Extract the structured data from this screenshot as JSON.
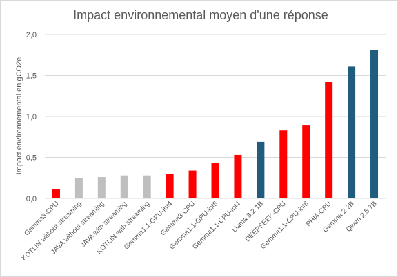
{
  "chart_data": {
    "type": "bar",
    "title": "Impact environnemental moyen d'une réponse",
    "xlabel": "",
    "ylabel": "Impact environnemental en gCO2e",
    "ylim": [
      0,
      2.0
    ],
    "yticks": [
      "0,0",
      "0,5",
      "1,0",
      "1,5",
      "2,0"
    ],
    "ytick_values": [
      0,
      0.5,
      1.0,
      1.5,
      2.0
    ],
    "grid": true,
    "legend": "none",
    "categories": [
      "Gemma3-CPU",
      "KOTLIN without streaming",
      "JAVA without streaming",
      "JAVA with streaming",
      "KOTLIN with streaming",
      "Gemma1.1-GPU-int4",
      "Gemma3-CPU",
      "Gemma1.1-GPU-int8",
      "Gemma1.1-CPU-int4",
      "Llama 3.2 1B",
      "DEEPSEEK-CPU",
      "Gemma1.1-CPU-int8",
      "PHI4-CPU",
      "Gemma 2 2B",
      "Qwen 2.5 7B"
    ],
    "values": [
      0.11,
      0.25,
      0.26,
      0.28,
      0.28,
      0.3,
      0.34,
      0.43,
      0.53,
      0.69,
      0.83,
      0.89,
      1.42,
      1.61,
      1.81
    ],
    "colors": [
      "#ff0000",
      "#bfbfbf",
      "#bfbfbf",
      "#bfbfbf",
      "#bfbfbf",
      "#ff0000",
      "#ff0000",
      "#ff0000",
      "#ff0000",
      "#1f5c7d",
      "#ff0000",
      "#ff0000",
      "#ff0000",
      "#1f5c7d",
      "#1f5c7d"
    ]
  },
  "style": {
    "grid_color": "#d9d9d9",
    "text_color": "#595959"
  }
}
